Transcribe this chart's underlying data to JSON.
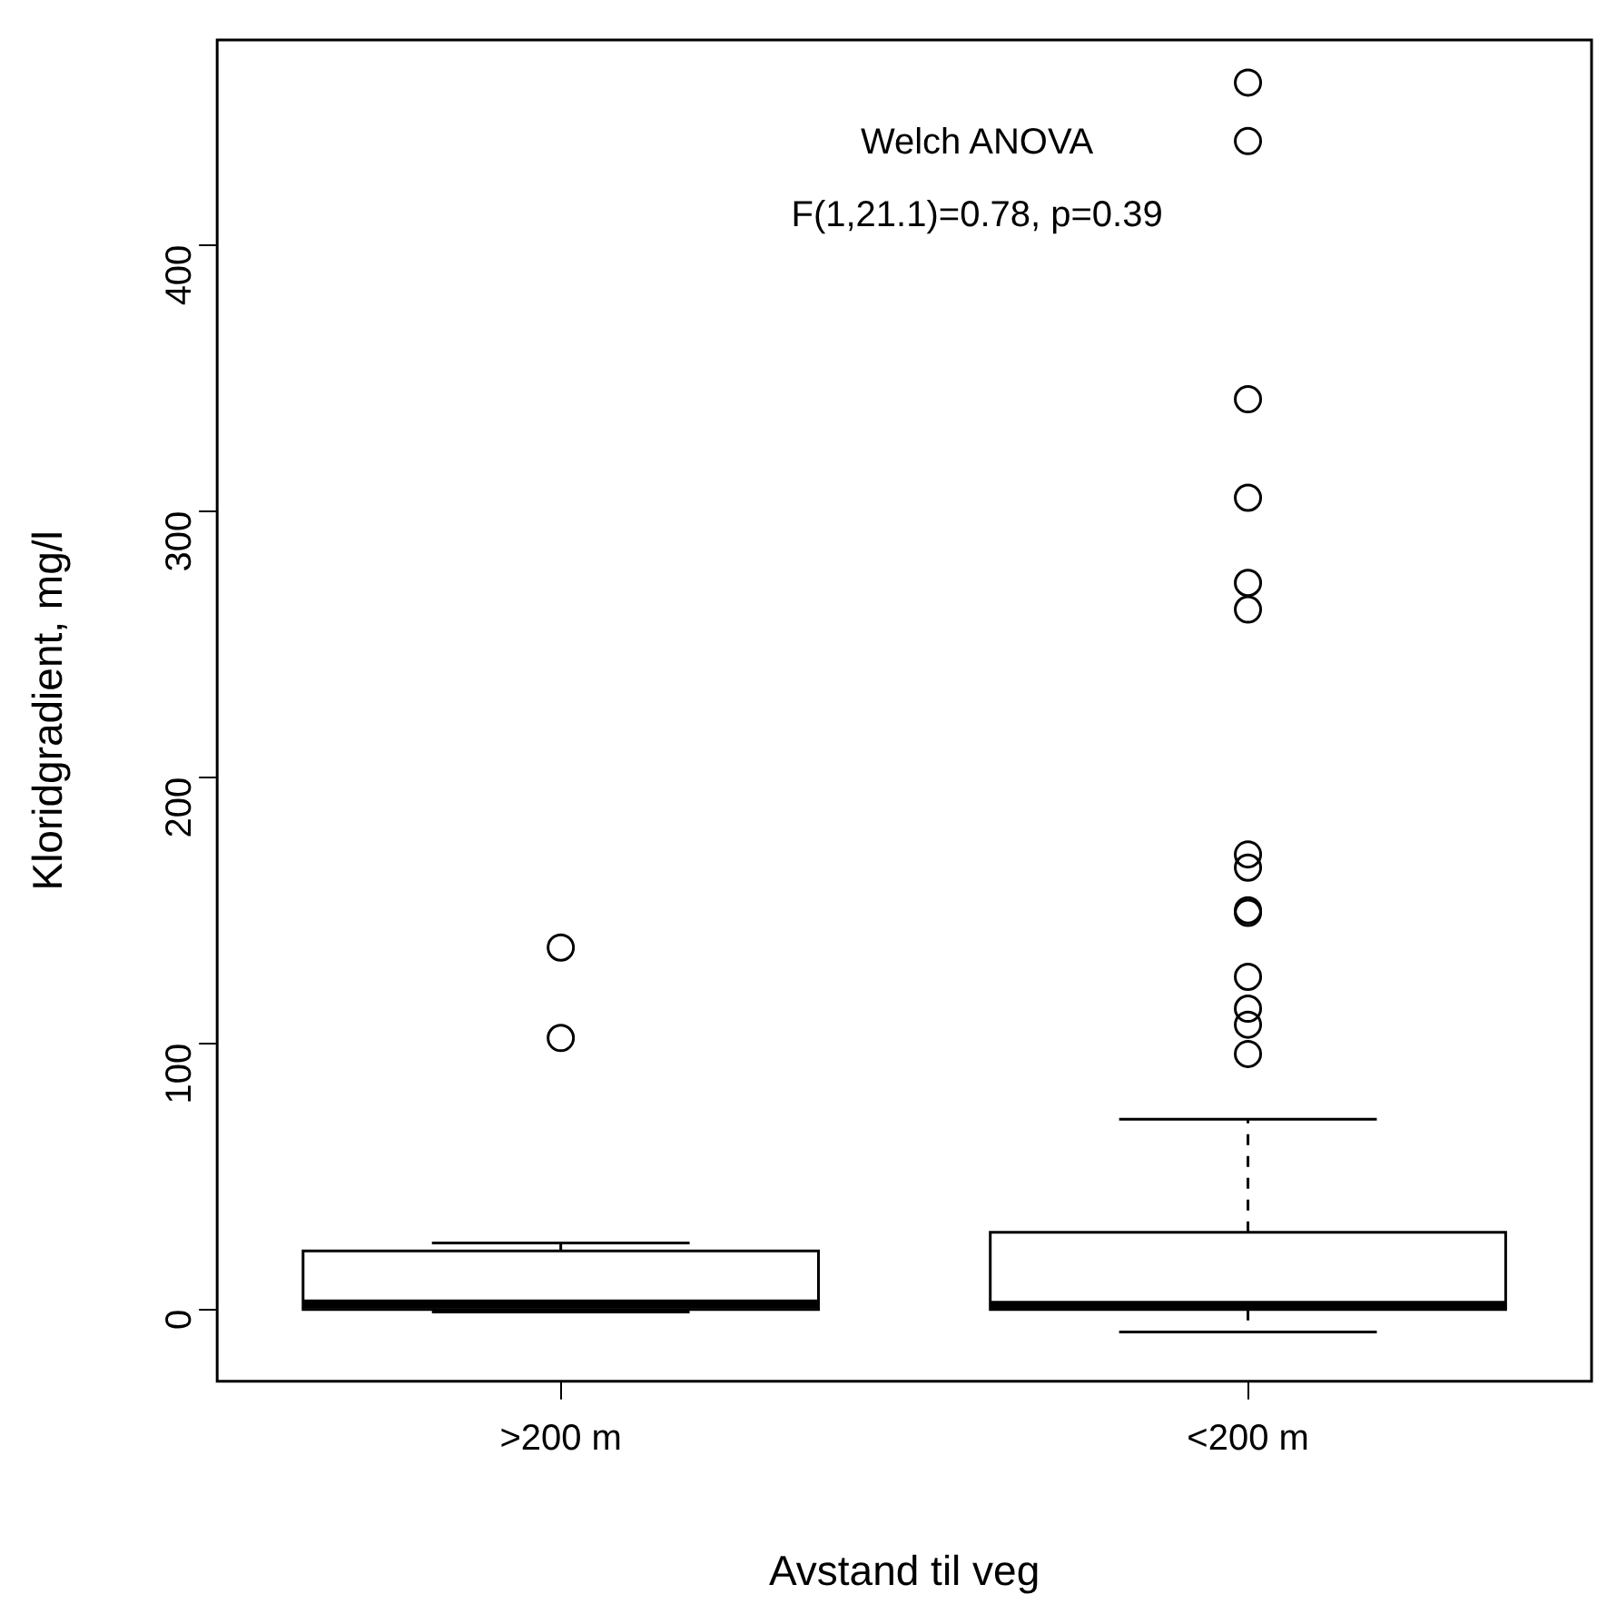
{
  "chart_data": {
    "type": "box",
    "xlabel": "Avstand til veg",
    "ylabel": "Kloridgradient, mg/l",
    "categories": [
      ">200 m",
      "<200 m"
    ],
    "color": "#000000",
    "boxes": [
      {
        "low": -1,
        "q1": 0,
        "median": 2,
        "q3": 22,
        "high": 25,
        "outliers": [
          136,
          102
        ]
      },
      {
        "low": -8.5,
        "q1": 0,
        "median": 1.5,
        "q3": 29,
        "high": 71.5,
        "outliers": [
          461,
          439,
          342,
          305,
          273,
          263,
          171,
          166,
          150,
          149,
          125,
          113,
          107,
          96
        ]
      }
    ],
    "ylim": [
      -27,
      477
    ],
    "yticks": [
      0,
      100,
      200,
      300,
      400
    ],
    "grid": false,
    "legend": false,
    "marker": "circle",
    "annotations": [
      "Welch ANOVA",
      "F(1,21.1)=0.78, p=0.39"
    ]
  }
}
